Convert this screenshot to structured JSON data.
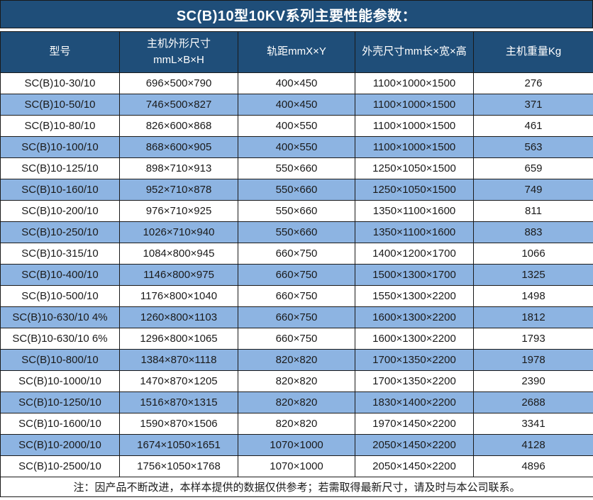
{
  "title": "SC(B)10型10KV系列主要性能参数：",
  "table": {
    "columns": [
      {
        "label": "型号"
      },
      {
        "label": "主机外形尺寸",
        "label2": "mmL×B×H"
      },
      {
        "label": "轨距mmX×Y"
      },
      {
        "label": "外壳尺寸mm长×宽×高"
      },
      {
        "label": "主机重量Kg"
      }
    ],
    "rows": [
      [
        "SC(B)10-30/10",
        "696×500×790",
        "400×450",
        "1100×1000×1500",
        "276"
      ],
      [
        "SC(B)10-50/10",
        "746×500×827",
        "400×450",
        "1100×1000×1500",
        "371"
      ],
      [
        "SC(B)10-80/10",
        "826×600×868",
        "400×550",
        "1100×1000×1500",
        "461"
      ],
      [
        "SC(B)10-100/10",
        "868×600×905",
        "400×550",
        "1100×1000×1500",
        "563"
      ],
      [
        "SC(B)10-125/10",
        "898×710×913",
        "550×660",
        "1250×1050×1500",
        "659"
      ],
      [
        "SC(B)10-160/10",
        "952×710×878",
        "550×660",
        "1250×1050×1500",
        "749"
      ],
      [
        "SC(B)10-200/10",
        "976×710×925",
        "550×660",
        "1350×1100×1600",
        "811"
      ],
      [
        "SC(B)10-250/10",
        "1026×710×940",
        "550×660",
        "1350×1100×1600",
        "883"
      ],
      [
        "SC(B)10-315/10",
        "1084×800×945",
        "660×750",
        "1400×1200×1700",
        "1066"
      ],
      [
        "SC(B)10-400/10",
        "1146×800×975",
        "660×750",
        "1500×1300×1700",
        "1325"
      ],
      [
        "SC(B)10-500/10",
        "1176×800×1040",
        "660×750",
        "1550×1300×2200",
        "1498"
      ],
      [
        "SC(B)10-630/10 4%",
        "1260×800×1103",
        "660×750",
        "1600×1300×2200",
        "1812"
      ],
      [
        "SC(B)10-630/10 6%",
        "1296×800×1065",
        "660×750",
        "1600×1300×2200",
        "1793"
      ],
      [
        "SC(B)10-800/10",
        "1384×870×1118",
        "820×820",
        "1700×1350×2200",
        "1978"
      ],
      [
        "SC(B)10-1000/10",
        "1470×870×1205",
        "820×820",
        "1700×1350×2200",
        "2390"
      ],
      [
        "SC(B)10-1250/10",
        "1516×870×1315",
        "820×820",
        "1830×1400×2200",
        "2688"
      ],
      [
        "SC(B)10-1600/10",
        "1590×870×1506",
        "820×820",
        "1970×1450×2200",
        "3341"
      ],
      [
        "SC(B)10-2000/10",
        "1674×1050×1651",
        "1070×1000",
        "2050×1450×2200",
        "4128"
      ],
      [
        "SC(B)10-2500/10",
        "1756×1050×1768",
        "1070×1000",
        "2050×1450×2200",
        "4896"
      ]
    ]
  },
  "note": "注：因产品不断改进，本样本提供的数据仅供参考；若需取得最新尺寸，请及时与本公司联系。",
  "colors": {
    "header_bg": "#1F4E79",
    "row_alt_bg": "#8DB4E2",
    "row_bg": "#FFFFFF",
    "header_text": "#FFFFFF",
    "body_text": "#1A1A1A",
    "border": "#1A1A1A"
  }
}
